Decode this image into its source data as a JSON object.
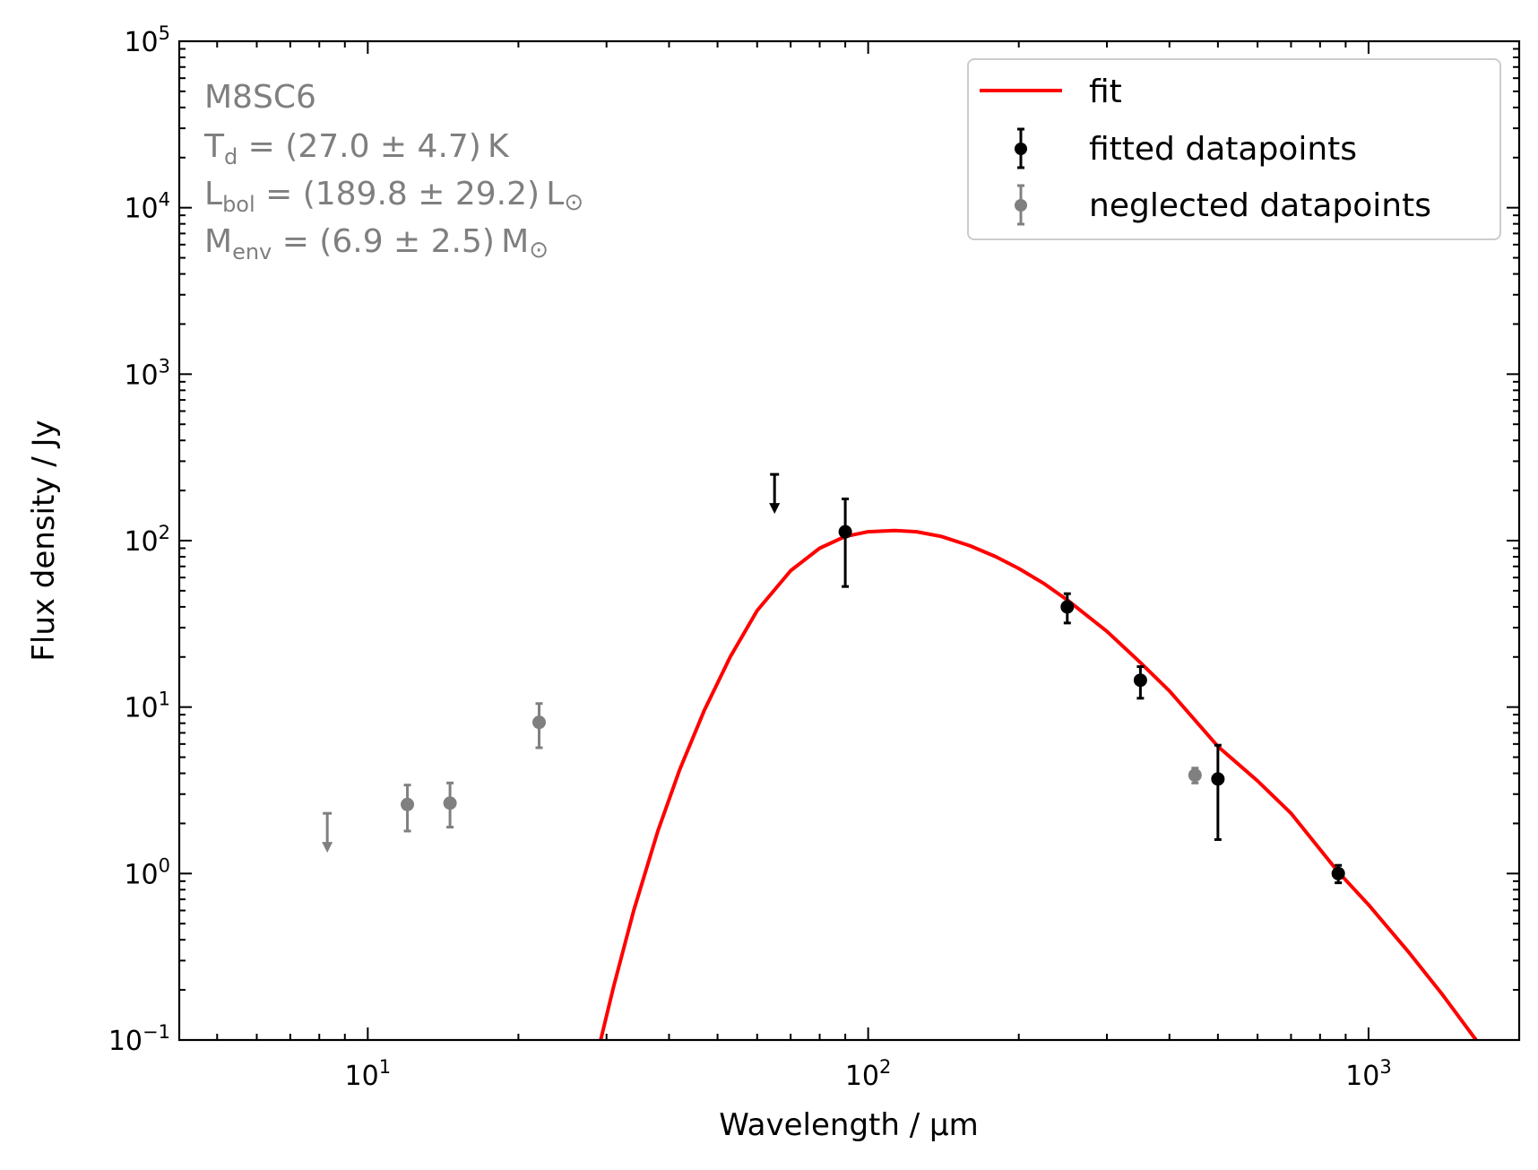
{
  "chart_data": {
    "type": "scatter",
    "title": "",
    "xlabel": "Wavelength / μm",
    "ylabel": "Flux density / Jy",
    "xscale": "log",
    "yscale": "log",
    "xlim": [
      4.2,
      2000
    ],
    "ylim": [
      0.1,
      100000
    ],
    "x_ticks": [
      {
        "value": 10,
        "base": "10",
        "exp": "1"
      },
      {
        "value": 100,
        "base": "10",
        "exp": "2"
      },
      {
        "value": 1000,
        "base": "10",
        "exp": "3"
      }
    ],
    "y_ticks": [
      {
        "value": 0.1,
        "base": "10",
        "exp": "−1"
      },
      {
        "value": 1,
        "base": "10",
        "exp": "0"
      },
      {
        "value": 10,
        "base": "10",
        "exp": "1"
      },
      {
        "value": 100,
        "base": "10",
        "exp": "2"
      },
      {
        "value": 1000,
        "base": "10",
        "exp": "3"
      },
      {
        "value": 10000,
        "base": "10",
        "exp": "4"
      },
      {
        "value": 100000,
        "base": "10",
        "exp": "5"
      }
    ],
    "series": [
      {
        "name": "fit",
        "kind": "line",
        "color": "#ff0000",
        "model": "modified_blackbody",
        "peak_wavelength": 113,
        "peak_flux": 115,
        "points": [
          [
            29.2,
            0.1
          ],
          [
            31,
            0.21
          ],
          [
            34,
            0.6
          ],
          [
            38,
            1.8
          ],
          [
            42,
            4.2
          ],
          [
            47,
            9.5
          ],
          [
            53,
            20
          ],
          [
            60,
            38
          ],
          [
            70,
            66
          ],
          [
            80,
            90
          ],
          [
            90,
            106
          ],
          [
            100,
            113
          ],
          [
            113,
            115
          ],
          [
            125,
            113
          ],
          [
            140,
            106
          ],
          [
            160,
            93
          ],
          [
            180,
            80
          ],
          [
            200,
            68
          ],
          [
            225,
            55
          ],
          [
            250,
            44
          ],
          [
            300,
            28.5
          ],
          [
            350,
            18.5
          ],
          [
            400,
            12.5
          ],
          [
            500,
            5.8
          ],
          [
            600,
            3.6
          ],
          [
            700,
            2.3
          ],
          [
            870,
            1.02
          ],
          [
            1000,
            0.65
          ],
          [
            1200,
            0.34
          ],
          [
            1400,
            0.19
          ],
          [
            1640,
            0.1
          ]
        ]
      },
      {
        "name": "fitted datapoints",
        "kind": "errorbar",
        "color": "#000000",
        "points": [
          {
            "x": 90,
            "y": 113,
            "lo": 53,
            "hi": 178
          },
          {
            "x": 250,
            "y": 40,
            "lo": 32,
            "hi": 48
          },
          {
            "x": 350,
            "y": 14.5,
            "lo": 11.3,
            "hi": 17.5
          },
          {
            "x": 500,
            "y": 3.7,
            "lo": 1.6,
            "hi": 5.9
          },
          {
            "x": 870,
            "y": 1.0,
            "lo": 0.88,
            "hi": 1.12
          }
        ],
        "upper_limits": [
          {
            "x": 65,
            "y": 250
          }
        ]
      },
      {
        "name": "neglected datapoints",
        "kind": "errorbar",
        "color": "#808080",
        "points": [
          {
            "x": 12,
            "y": 2.6,
            "lo": 1.8,
            "hi": 3.4
          },
          {
            "x": 14.6,
            "y": 2.65,
            "lo": 1.9,
            "hi": 3.5
          },
          {
            "x": 22,
            "y": 8.1,
            "lo": 5.7,
            "hi": 10.5
          },
          {
            "x": 450,
            "y": 3.9,
            "lo": 3.5,
            "hi": 4.3
          }
        ],
        "upper_limits": [
          {
            "x": 8.3,
            "y": 2.3
          }
        ]
      }
    ],
    "annotation": {
      "source": "M8SC6",
      "td": {
        "sym": "T",
        "sub": "d",
        "val": " = (27.0 ± 4.7) K"
      },
      "lbol": {
        "sym": "L",
        "sub": "bol",
        "val": " = (189.8 ± 29.2) L",
        "sun": "⊙"
      },
      "menv": {
        "sym": "M",
        "sub": "env",
        "val": " = (6.9 ± 2.5) M",
        "sun": "⊙"
      }
    },
    "legend": {
      "position": "upper right",
      "entries": [
        "fit",
        "fitted datapoints",
        "neglected datapoints"
      ]
    }
  }
}
